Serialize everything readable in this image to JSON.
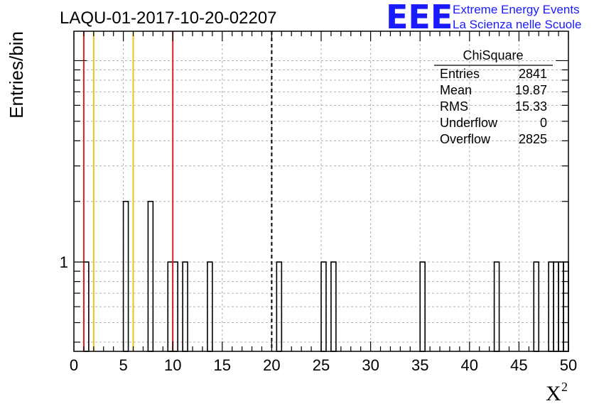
{
  "chart_data": {
    "type": "bar",
    "title": "LAQU-01-2017-10-20-02207",
    "xlabel": "X",
    "xlabel_superscript": "2",
    "ylabel": "Entries/bin",
    "xlim": [
      0,
      50
    ],
    "ylim_log": [
      0.36,
      14
    ],
    "log_y": true,
    "grid": true,
    "x_ticks": [
      0,
      5,
      10,
      15,
      20,
      25,
      30,
      35,
      40,
      45,
      50
    ],
    "y_ticks": [
      1
    ],
    "bin_width": 0.5,
    "bins": [
      {
        "x": 1.0,
        "y": 1
      },
      {
        "x": 5.0,
        "y": 2
      },
      {
        "x": 7.5,
        "y": 2
      },
      {
        "x": 9.5,
        "y": 1
      },
      {
        "x": 10.0,
        "y": 1
      },
      {
        "x": 11.0,
        "y": 1
      },
      {
        "x": 13.5,
        "y": 1
      },
      {
        "x": 20.5,
        "y": 1
      },
      {
        "x": 25.0,
        "y": 1
      },
      {
        "x": 26.0,
        "y": 1
      },
      {
        "x": 35.0,
        "y": 1
      },
      {
        "x": 42.5,
        "y": 1
      },
      {
        "x": 46.5,
        "y": 1
      },
      {
        "x": 48.0,
        "y": 1
      },
      {
        "x": 48.5,
        "y": 1
      },
      {
        "x": 49.0,
        "y": 1
      },
      {
        "x": 49.5,
        "y": 1
      }
    ],
    "reference_lines": [
      {
        "x": 1,
        "color": "#e02020",
        "style": "solid"
      },
      {
        "x": 2,
        "color": "#f0c020",
        "style": "solid"
      },
      {
        "x": 6,
        "color": "#f0c020",
        "style": "solid"
      },
      {
        "x": 10,
        "color": "#e02020",
        "style": "solid"
      },
      {
        "x": 20,
        "color": "#000000",
        "style": "dashed"
      }
    ],
    "stats_box": {
      "title": "ChiSquare",
      "rows": [
        {
          "label": "Entries",
          "value": "2841"
        },
        {
          "label": "Mean",
          "value": "19.87"
        },
        {
          "label": "RMS",
          "value": "15.33"
        },
        {
          "label": "Underflow",
          "value": "0"
        },
        {
          "label": "Overflow",
          "value": "2825"
        }
      ]
    }
  },
  "logo": {
    "big": "EEE",
    "line1": "Extreme Energy Events",
    "line2": "La Scienza nelle Scuole",
    "color": "#1a1aff"
  }
}
